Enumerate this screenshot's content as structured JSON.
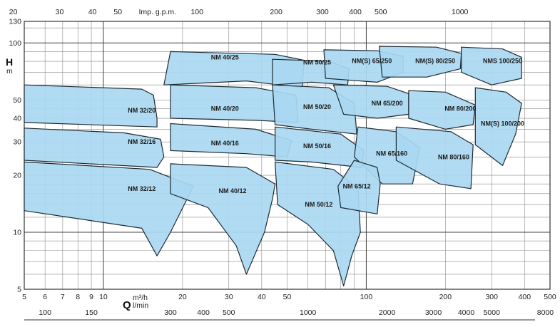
{
  "chart_data": {
    "type": "area",
    "title": "",
    "scale": "log-log",
    "grid": true,
    "colors": {
      "fill": "#a9d8f2",
      "stroke": "#1e2b33",
      "grid": "#8b8b8b",
      "background": "#ffffff"
    },
    "y_axis": {
      "label": "H",
      "unit": "m",
      "ylim": [
        5,
        130
      ],
      "ticks": [
        5,
        10,
        20,
        30,
        40,
        50,
        100,
        130
      ],
      "tick_labels": [
        "5",
        "10",
        "20",
        "30",
        "40",
        "50",
        "100",
        "130"
      ]
    },
    "x_axis_bottom": {
      "label": "Q",
      "unit_top": "m³/h",
      "unit_bottom": "l/min",
      "xlim": [
        5,
        500
      ],
      "ticks": [
        5,
        6,
        7,
        8,
        9,
        10,
        20,
        30,
        40,
        50,
        100,
        200,
        300,
        400,
        500
      ],
      "tick_labels": [
        "5",
        "6",
        "7",
        "8",
        "9",
        "10",
        "20",
        "30",
        "40",
        "50",
        "100",
        "200",
        "300",
        "400",
        "500"
      ]
    },
    "x_axis_lmin": {
      "ticks": [
        100,
        150,
        300,
        400,
        500,
        1000,
        2000,
        3000,
        4000,
        5000,
        8000
      ],
      "tick_labels": [
        "100",
        "150",
        "300",
        "400",
        "500",
        "1000",
        "2000",
        "3000",
        "4000",
        "5000",
        "8000"
      ]
    },
    "x_axis_top": {
      "label": "Imp. g.p.m.",
      "ticks": [
        20,
        30,
        40,
        50,
        100,
        200,
        300,
        400,
        500,
        1000
      ],
      "tick_labels": [
        "20",
        "30",
        "40",
        "50",
        "100",
        "200",
        "300",
        "400",
        "500",
        "1000"
      ]
    },
    "series": [
      {
        "name": "NM 32/20",
        "label_at": [
          14,
          44
        ],
        "points": [
          [
            5,
            60
          ],
          [
            14,
            57
          ],
          [
            15.5,
            53
          ],
          [
            16,
            40
          ],
          [
            16,
            36
          ],
          [
            5,
            38
          ]
        ]
      },
      {
        "name": "NM 32/16",
        "label_at": [
          14,
          30
        ],
        "points": [
          [
            5,
            35.5
          ],
          [
            12,
            33.5
          ],
          [
            16.5,
            31
          ],
          [
            17,
            25
          ],
          [
            16,
            22
          ],
          [
            5,
            24
          ]
        ]
      },
      {
        "name": "NM 32/12",
        "label_at": [
          14,
          17
        ],
        "points": [
          [
            5,
            23.5
          ],
          [
            15,
            21.5
          ],
          [
            22,
            17.5
          ],
          [
            18,
            10
          ],
          [
            16,
            7.5
          ],
          [
            14,
            10.5
          ],
          [
            5,
            13
          ]
        ]
      },
      {
        "name": "NM 40/25",
        "label_at": [
          29,
          84
        ],
        "points": [
          [
            18,
            90
          ],
          [
            45,
            87
          ],
          [
            58,
            81
          ],
          [
            57,
            58
          ],
          [
            35,
            63
          ],
          [
            17,
            60
          ]
        ]
      },
      {
        "name": "NM 40/20",
        "label_at": [
          29,
          45
        ],
        "points": [
          [
            18,
            60
          ],
          [
            38,
            58
          ],
          [
            54,
            53
          ],
          [
            55,
            38
          ],
          [
            38,
            39
          ],
          [
            18,
            40
          ]
        ]
      },
      {
        "name": "NM 40/16",
        "label_at": [
          29,
          29.5
        ],
        "points": [
          [
            18,
            37.5
          ],
          [
            38,
            35
          ],
          [
            52,
            30.5
          ],
          [
            50,
            25
          ],
          [
            35,
            26
          ],
          [
            18,
            27
          ]
        ]
      },
      {
        "name": "NM 40/12",
        "label_at": [
          31,
          16.5
        ],
        "points": [
          [
            18,
            23
          ],
          [
            35,
            22
          ],
          [
            45,
            18
          ],
          [
            44,
            15
          ],
          [
            41,
            10
          ],
          [
            35,
            6
          ],
          [
            32,
            8.5
          ],
          [
            25,
            13.5
          ],
          [
            18,
            16
          ]
        ]
      },
      {
        "name": "NM 50/25",
        "label_at": [
          65,
          79
        ],
        "points": [
          [
            44,
            82
          ],
          [
            72,
            80
          ],
          [
            86,
            73
          ],
          [
            85,
            60
          ],
          [
            62,
            62
          ],
          [
            44,
            60
          ]
        ]
      },
      {
        "name": "NM 50/20",
        "label_at": [
          65,
          46
        ],
        "points": [
          [
            44,
            60
          ],
          [
            72,
            58
          ],
          [
            90,
            48
          ],
          [
            92,
            33
          ],
          [
            62,
            35
          ],
          [
            45,
            37
          ]
        ]
      },
      {
        "name": "NM 50/16",
        "label_at": [
          65,
          28.5
        ],
        "points": [
          [
            45,
            36
          ],
          [
            80,
            33
          ],
          [
            98,
            27
          ],
          [
            96,
            22
          ],
          [
            62,
            23.5
          ],
          [
            45,
            24
          ]
        ]
      },
      {
        "name": "NM 50/12",
        "label_at": [
          66,
          14
        ],
        "points": [
          [
            45,
            23.5
          ],
          [
            75,
            21.5
          ],
          [
            93,
            17
          ],
          [
            95,
            10
          ],
          [
            88,
            7.5
          ],
          [
            82,
            5.2
          ],
          [
            75,
            8
          ],
          [
            60,
            11
          ],
          [
            46,
            14
          ]
        ]
      },
      {
        "name": "NM(S) 65/250",
        "label_at": [
          105,
          80.5
        ],
        "points": [
          [
            69,
            92
          ],
          [
            110,
            91
          ],
          [
            138,
            85
          ],
          [
            138,
            70
          ],
          [
            110,
            62
          ],
          [
            70,
            65
          ]
        ]
      },
      {
        "name": "NM 65/200",
        "label_at": [
          120,
          48
        ],
        "points": [
          [
            75,
            60
          ],
          [
            120,
            59
          ],
          [
            145,
            54
          ],
          [
            145,
            42
          ],
          [
            110,
            40
          ],
          [
            82,
            42
          ]
        ]
      },
      {
        "name": "NM 65/160",
        "label_at": [
          125,
          26
        ],
        "points": [
          [
            93,
            36
          ],
          [
            130,
            34
          ],
          [
            160,
            28
          ],
          [
            150,
            18
          ],
          [
            115,
            18
          ],
          [
            90,
            25
          ]
        ]
      },
      {
        "name": "NM 65/12",
        "label_at": [
          92,
          17.5
        ],
        "points": [
          [
            90,
            24
          ],
          [
            110,
            22
          ],
          [
            113,
            18
          ],
          [
            110,
            12.5
          ],
          [
            80,
            13.5
          ],
          [
            78,
            17.5
          ]
        ]
      },
      {
        "name": "NM(S) 80/250",
        "label_at": [
          183,
          80.5
        ],
        "points": [
          [
            112,
            96
          ],
          [
            185,
            95
          ],
          [
            230,
            88
          ],
          [
            228,
            73
          ],
          [
            170,
            66
          ],
          [
            115,
            66
          ]
        ]
      },
      {
        "name": "NM 80/200",
        "label_at": [
          228,
          45
        ],
        "points": [
          [
            145,
            56
          ],
          [
            200,
            55
          ],
          [
            260,
            47
          ],
          [
            255,
            37
          ],
          [
            200,
            35
          ],
          [
            145,
            40
          ]
        ]
      },
      {
        "name": "NM 80/160",
        "label_at": [
          215,
          25
        ],
        "points": [
          [
            130,
            36
          ],
          [
            210,
            34
          ],
          [
            255,
            29
          ],
          [
            250,
            17
          ],
          [
            190,
            18
          ],
          [
            130,
            24
          ]
        ]
      },
      {
        "name": "NMS 100/250",
        "label_at": [
          330,
          80.5
        ],
        "points": [
          [
            230,
            95
          ],
          [
            330,
            93
          ],
          [
            390,
            84
          ],
          [
            390,
            65
          ],
          [
            300,
            60
          ],
          [
            230,
            70
          ]
        ]
      },
      {
        "name": "NM(S) 100/200",
        "label_at": [
          330,
          37.5
        ],
        "points": [
          [
            260,
            58
          ],
          [
            340,
            55
          ],
          [
            390,
            48
          ],
          [
            370,
            33
          ],
          [
            330,
            22.5
          ],
          [
            260,
            29
          ]
        ]
      }
    ]
  }
}
